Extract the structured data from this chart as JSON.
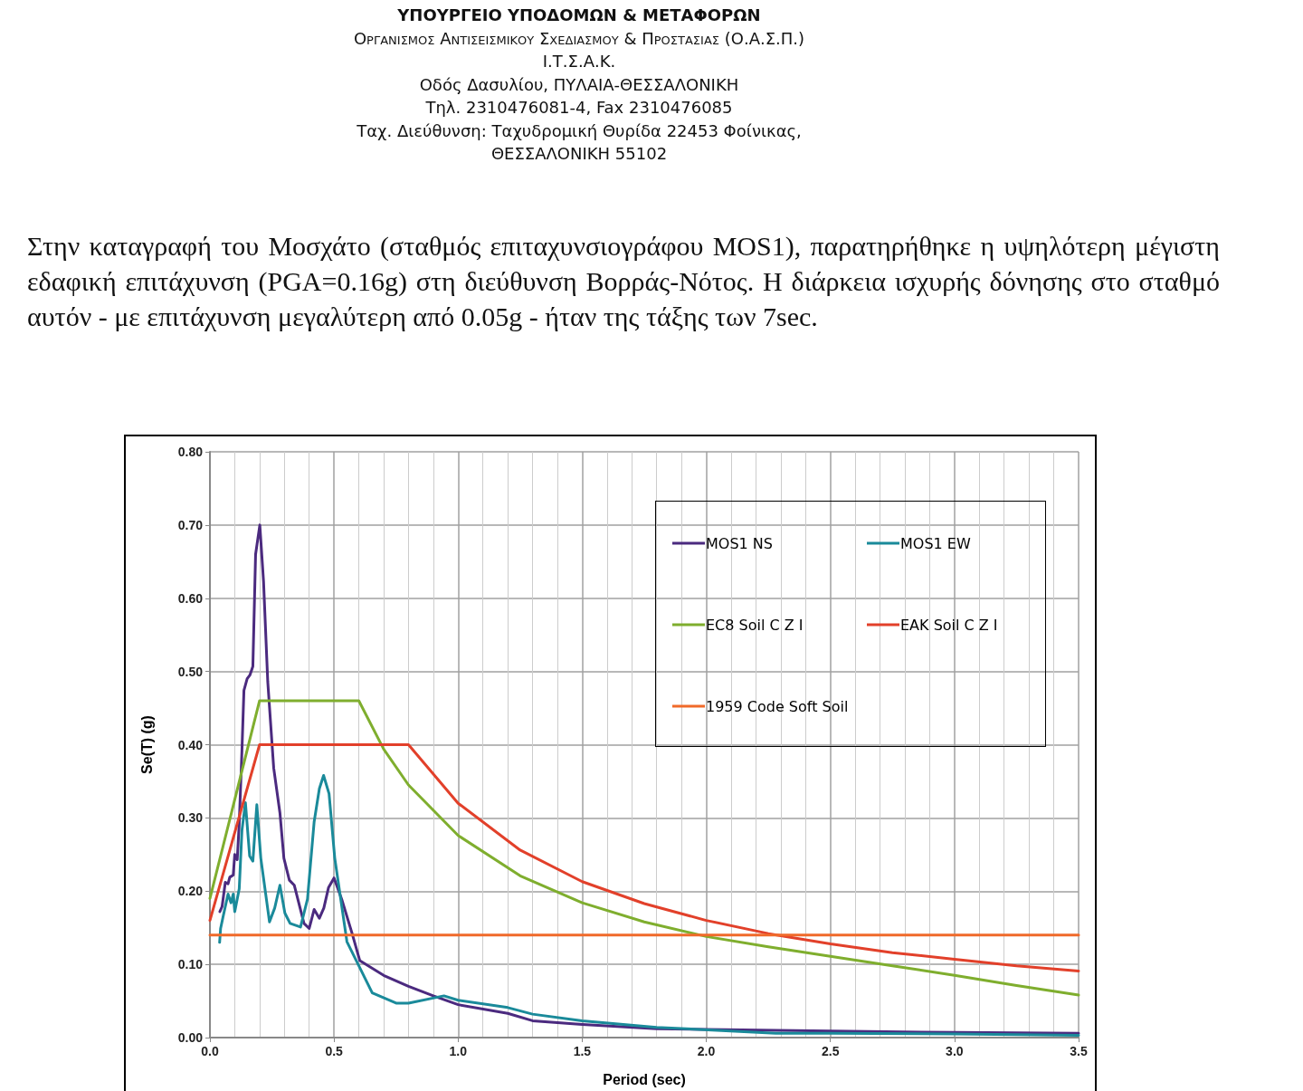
{
  "chart_data": {
    "type": "line",
    "title": "ΥΠΟΥΡΓΕΙΟ ΥΠΟΔΟΜΩΝ & ΜΕΤΑΦΟΡΩΝ",
    "subtitle": "Οργανισμος Αντισεισμικου Σχεδιασμου & Προστασιας (Ο.Α.Σ.Π.)",
    "annotations": [
      "Ι.Τ.Σ.Α.Κ.",
      "Οδός Δασυλίου, ΠΥΛΑΙΑ-ΘΕΣΣΑΛΟΝΙΚΗ",
      "Τηλ. 2310476081-4,  Fax 2310476085",
      "Ταχ. Διεύθυνση: Ταχυδρομική Θυρίδα 22453 Φοίνικας,",
      "ΘΕΣΣΑΛΟΝΙΚΗ 55102",
      "Στην καταγραφή του Μοσχάτο (σταθμός επιταχυνσιογράφου MOS1), παρατηρήθηκε η υψηλότερη μέγιστη εδαφική επιτάχυνση (PGA=0.16g) στη διεύθυνση Βορράς-Νότος. Η διάρκεια ισχυρής δόνησης στο σταθμό αυτόν - με επιτάχυνση μεγαλύτερη από 0.05g - ήταν της τάξης των 7sec."
    ],
    "xlabel": "Period (sec)",
    "ylabel": "Se(T) (g)",
    "xlim": [
      0,
      3.5
    ],
    "ylim": [
      0,
      0.8
    ],
    "xticks": [
      {
        "value": 0,
        "label": "0.0"
      },
      {
        "value": 0.5,
        "label": "0.5"
      },
      {
        "value": 1,
        "label": "1.0"
      },
      {
        "value": 1.5,
        "label": "1.5"
      },
      {
        "value": 2,
        "label": "2.0"
      },
      {
        "value": 2.5,
        "label": "2.5"
      },
      {
        "value": 3,
        "label": "3.0"
      },
      {
        "value": 3.5,
        "label": "3.5"
      }
    ],
    "yticks": [
      {
        "value": 0,
        "label": "0.00"
      },
      {
        "value": 0.1,
        "label": "0.10"
      },
      {
        "value": 0.2,
        "label": "0.20"
      },
      {
        "value": 0.3,
        "label": "0.30"
      },
      {
        "value": 0.4,
        "label": "0.40"
      },
      {
        "value": 0.5,
        "label": "0.50"
      },
      {
        "value": 0.6,
        "label": "0.60"
      },
      {
        "value": 0.7,
        "label": "0.70"
      },
      {
        "value": 0.8,
        "label": "0.80"
      }
    ],
    "grid": true,
    "legend": "top right",
    "marker": "none",
    "line_style": "solid",
    "series": [
      {
        "name": "MOS1 NS",
        "color": "#4b2a7f",
        "x": [
          0.04,
          0.049,
          0.062,
          0.073,
          0.08,
          0.094,
          0.1,
          0.11,
          0.118,
          0.129,
          0.137,
          0.15,
          0.161,
          0.173,
          0.184,
          0.201,
          0.216,
          0.233,
          0.257,
          0.282,
          0.298,
          0.32,
          0.34,
          0.379,
          0.4,
          0.42,
          0.441,
          0.459,
          0.478,
          0.5,
          0.531,
          0.573,
          0.604,
          0.7,
          0.8,
          0.9,
          1.0,
          1.2,
          1.3,
          1.5,
          1.8,
          2.28,
          2.5,
          3.0,
          3.5
        ],
        "values": [
          0.172,
          0.179,
          0.212,
          0.21,
          0.219,
          0.222,
          0.25,
          0.243,
          0.292,
          0.392,
          0.474,
          0.49,
          0.495,
          0.507,
          0.66,
          0.7,
          0.623,
          0.486,
          0.368,
          0.307,
          0.245,
          0.215,
          0.208,
          0.156,
          0.149,
          0.175,
          0.163,
          0.177,
          0.205,
          0.218,
          0.189,
          0.142,
          0.105,
          0.085,
          0.07,
          0.057,
          0.045,
          0.033,
          0.023,
          0.018,
          0.012,
          0.01,
          0.009,
          0.007,
          0.006
        ]
      },
      {
        "name": "MOS1 EW",
        "color": "#1a8a9a",
        "x": [
          0.039,
          0.043,
          0.053,
          0.062,
          0.073,
          0.085,
          0.094,
          0.1,
          0.118,
          0.129,
          0.143,
          0.16,
          0.173,
          0.189,
          0.205,
          0.24,
          0.261,
          0.282,
          0.302,
          0.323,
          0.365,
          0.393,
          0.42,
          0.441,
          0.458,
          0.48,
          0.503,
          0.552,
          0.654,
          0.75,
          0.8,
          0.943,
          1.0,
          1.2,
          1.3,
          1.5,
          1.8,
          2.28,
          2.5,
          3.0,
          3.5
        ],
        "values": [
          0.13,
          0.149,
          0.165,
          0.179,
          0.196,
          0.184,
          0.196,
          0.172,
          0.203,
          0.283,
          0.321,
          0.248,
          0.241,
          0.318,
          0.245,
          0.158,
          0.177,
          0.208,
          0.17,
          0.156,
          0.151,
          0.189,
          0.295,
          0.34,
          0.358,
          0.333,
          0.245,
          0.131,
          0.061,
          0.047,
          0.047,
          0.057,
          0.051,
          0.041,
          0.032,
          0.023,
          0.014,
          0.006,
          0.006,
          0.005,
          0.003
        ]
      },
      {
        "name": "EC8 Soil C Z I",
        "color": "#7fae2e",
        "x": [
          0,
          0.2,
          0.6,
          0.7,
          0.8,
          1.0,
          1.25,
          1.5,
          1.75,
          2.0,
          2.25,
          2.5,
          2.75,
          3.0,
          3.25,
          3.5
        ],
        "values": [
          0.19,
          0.46,
          0.46,
          0.394,
          0.345,
          0.276,
          0.221,
          0.184,
          0.158,
          0.138,
          0.124,
          0.111,
          0.098,
          0.085,
          0.071,
          0.058
        ]
      },
      {
        "name": "EAK Soil C Z I",
        "color": "#e2402a",
        "x": [
          0,
          0.2,
          0.8,
          1.0,
          1.25,
          1.5,
          1.75,
          2.0,
          2.25,
          2.5,
          2.75,
          3.0,
          3.25,
          3.5
        ],
        "values": [
          0.16,
          0.4,
          0.4,
          0.32,
          0.256,
          0.213,
          0.183,
          0.16,
          0.142,
          0.128,
          0.116,
          0.107,
          0.098,
          0.091
        ]
      },
      {
        "name": "1959 Code Soft Soil",
        "color": "#f06a2a",
        "x": [
          0,
          3.5
        ],
        "values": [
          0.14,
          0.14
        ]
      }
    ]
  }
}
